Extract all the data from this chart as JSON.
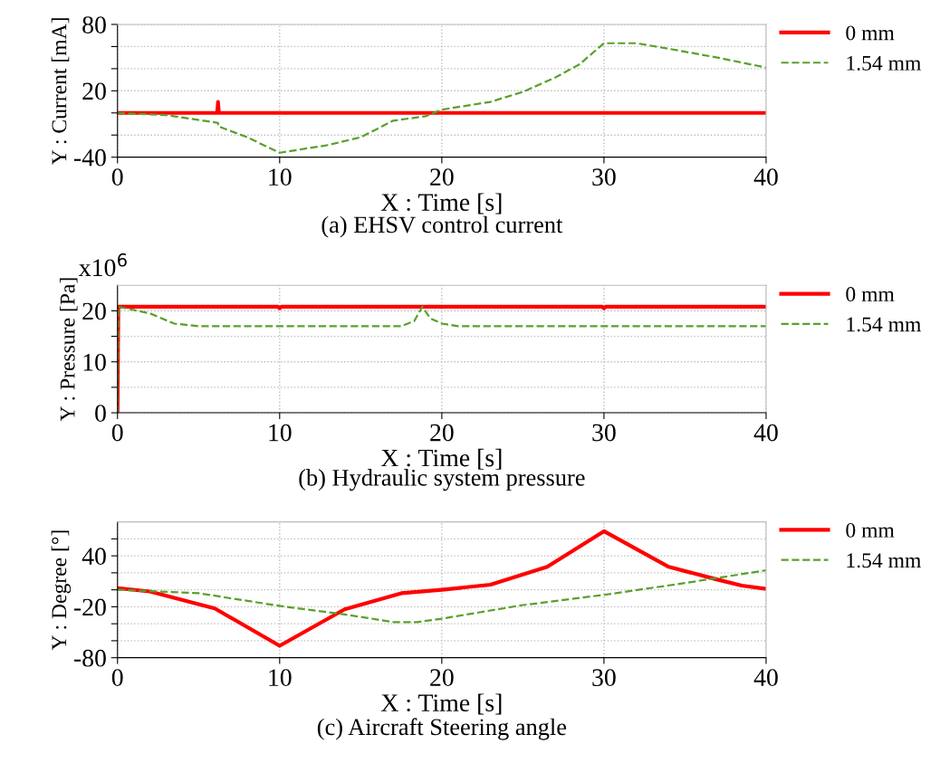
{
  "chart_data": [
    {
      "type": "line",
      "title": "(a) EHSV control current",
      "xlabel": "X : Time [s]",
      "ylabel": "Y : Current [mA]",
      "xlim": [
        0,
        40
      ],
      "xticks": [
        0,
        10,
        20,
        30,
        40
      ],
      "ylim": [
        -40,
        80
      ],
      "yticks": [
        -40,
        {
          "value": -20,
          "label": null
        },
        {
          "value": 0,
          "label": null
        },
        20,
        {
          "value": 40,
          "label": null
        },
        {
          "value": 60,
          "label": null
        },
        80
      ],
      "grid": true,
      "legend": "top right",
      "series": [
        {
          "name": "0 mm",
          "color": "#ff0000",
          "line_style": "solid",
          "x": [
            0,
            6.15,
            6.2,
            6.25,
            40
          ],
          "values": [
            0,
            0,
            10,
            0,
            0
          ]
        },
        {
          "name": "1.54 mm",
          "color": "#5aa02c",
          "line_style": "dashed",
          "x": [
            0,
            3,
            6.2,
            6.2,
            8,
            10,
            13,
            15,
            17,
            19,
            20,
            23,
            25,
            27,
            28.5,
            30,
            32,
            34,
            37,
            40
          ],
          "values": [
            0,
            -2,
            -9,
            -12,
            -22,
            -36,
            -29,
            -22,
            -7,
            -3,
            3,
            10,
            19,
            32,
            44,
            63,
            63,
            58,
            50,
            41
          ]
        }
      ]
    },
    {
      "type": "line",
      "title": "(b) Hydraulic system pressure",
      "xlabel": "X : Time [s]",
      "ylabel": "Y : Pressure [Pa]",
      "annotations": [
        "x10$^{6}$"
      ],
      "xlim": [
        0,
        40
      ],
      "xticks": [
        0,
        10,
        20,
        30,
        40
      ],
      "ylim": [
        0,
        25
      ],
      "yticks": [
        0,
        {
          "value": 5,
          "label": null
        },
        10,
        {
          "value": 15,
          "label": null
        },
        20
      ],
      "grid": true,
      "legend": "top right",
      "series": [
        {
          "name": "0 mm",
          "color": "#ff0000",
          "line_style": "solid",
          "x": [
            0,
            0.05,
            9.9,
            10,
            10.1,
            29.9,
            30,
            30.1,
            40
          ],
          "values": [
            0,
            20.8,
            20.8,
            20.5,
            20.8,
            20.8,
            20.5,
            20.8,
            20.8
          ]
        },
        {
          "name": "1.54 mm",
          "color": "#5aa02c",
          "line_style": "dashed",
          "x": [
            0,
            0.05,
            2,
            3.5,
            5,
            17.5,
            18.3,
            18.8,
            19.3,
            20,
            21,
            40
          ],
          "values": [
            0,
            20.8,
            19.5,
            17.5,
            17.0,
            17.0,
            18.0,
            20.8,
            18.5,
            17.5,
            17.0,
            17.0
          ]
        }
      ]
    },
    {
      "type": "line",
      "title": "(c) Aircraft Steering angle",
      "xlabel": "X : Time [s]",
      "ylabel": "Y : Degree [°]",
      "xlim": [
        0,
        40
      ],
      "xticks": [
        0,
        10,
        20,
        30,
        40
      ],
      "ylim": [
        -80,
        80
      ],
      "yticks": [
        -80,
        {
          "value": -60,
          "label": null
        },
        {
          "value": -40,
          "label": null
        },
        -20,
        {
          "value": 0,
          "label": null
        },
        {
          "value": 20,
          "label": null
        },
        40,
        {
          "value": 60,
          "label": null
        }
      ],
      "grid": true,
      "legend": "top right",
      "series": [
        {
          "name": "0 mm",
          "color": "#ff0000",
          "line_style": "solid",
          "x": [
            0,
            2,
            6,
            10,
            14,
            17.5,
            20,
            23,
            26.5,
            30,
            34,
            37,
            38.5,
            40
          ],
          "values": [
            2,
            -2,
            -22,
            -66,
            -23,
            -4,
            0,
            6,
            27,
            69,
            27,
            12,
            5,
            1
          ]
        },
        {
          "name": "1.54 mm",
          "color": "#5aa02c",
          "line_style": "dashed",
          "x": [
            0,
            5,
            10,
            14,
            17,
            18.5,
            20,
            25,
            30,
            35,
            40
          ],
          "values": [
            0,
            -4,
            -19,
            -29,
            -38,
            -38,
            -34,
            -18,
            -6,
            8,
            23
          ]
        }
      ]
    }
  ]
}
